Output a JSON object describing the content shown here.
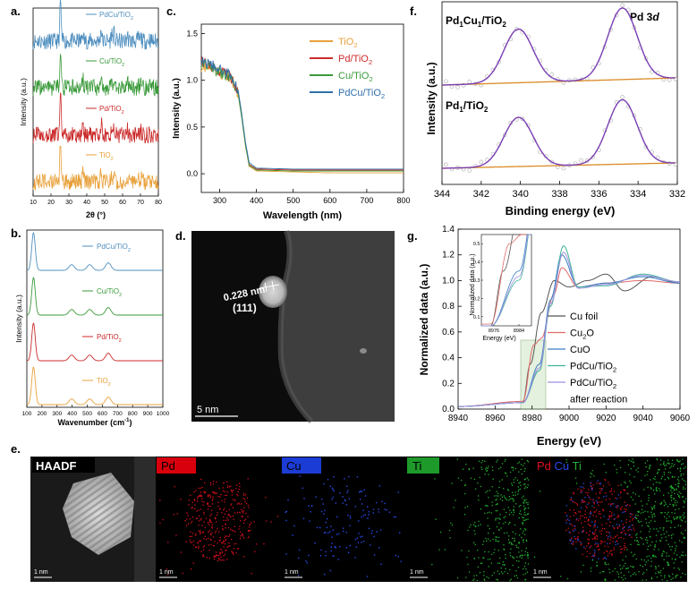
{
  "panels": {
    "a": {
      "letter": "a.",
      "ylabel": "Intensity (a.u.)",
      "xlabel": "2θ (°)",
      "xticks": [
        "10",
        "20",
        "30",
        "40",
        "50",
        "60",
        "70",
        "80"
      ],
      "series": [
        {
          "name": "PdCu/TiO",
          "sub": "2",
          "color": "#4f8fbf"
        },
        {
          "name": "Cu/TiO",
          "sub": "2",
          "color": "#3a9a3a"
        },
        {
          "name": "Pd/TiO",
          "sub": "2",
          "color": "#cc2b2b"
        },
        {
          "name": "TiO",
          "sub": "2",
          "color": "#e8a13a"
        }
      ]
    },
    "b": {
      "letter": "b.",
      "ylabel": "Intensity (a.u.)",
      "xlabel": "Wavenumber (cm",
      "xlabel_sup": "-1",
      "xlabel_tail": ")",
      "xticks": [
        "100",
        "200",
        "300",
        "400",
        "500",
        "600",
        "700",
        "800",
        "900",
        "1000"
      ],
      "series": [
        {
          "name": "PdCu/TiO",
          "sub": "2",
          "color": "#4f8fbf"
        },
        {
          "name": "Cu/TiO",
          "sub": "2",
          "color": "#3a9a3a"
        },
        {
          "name": "Pd/TiO",
          "sub": "2",
          "color": "#cc2b2b"
        },
        {
          "name": "TiO",
          "sub": "2",
          "color": "#e8a13a"
        }
      ]
    },
    "c": {
      "letter": "c.",
      "ylabel": "Intensity (a.u.)",
      "xlabel": "Wavelength (nm)",
      "xticks": [
        "300",
        "400",
        "500",
        "600",
        "700",
        "800"
      ],
      "yticks": [
        "0.0",
        "0.5",
        "1.0",
        "1.5"
      ],
      "series": [
        {
          "name": "TiO",
          "sub": "2",
          "color": "#e8a13a"
        },
        {
          "name": "Pd/TiO",
          "sub": "2",
          "color": "#cc2b2b"
        },
        {
          "name": "Cu/TiO",
          "sub": "2",
          "color": "#3a9a3a"
        },
        {
          "name": "PdCu/TiO",
          "sub": "2",
          "color": "#2f6fa8"
        }
      ]
    },
    "d": {
      "letter": "d.",
      "dspacing": "0.228 nm",
      "plane": "(111)",
      "scalebar": "5 nm"
    },
    "e": {
      "letter": "e.",
      "tiles": [
        {
          "label": "HAADF",
          "scalebar": "1 nm"
        },
        {
          "label": "Pd",
          "scalebar": "1 nm"
        },
        {
          "label": "Cu",
          "scalebar": "1 nm"
        },
        {
          "label": "Ti",
          "scalebar": "1 nm"
        },
        {
          "label_pd": "Pd",
          "label_cu": "Cu",
          "label_ti": "Ti",
          "scalebar": "1 nm"
        }
      ]
    },
    "f": {
      "letter": "f.",
      "ylabel": "Intensity (a.u.)",
      "xlabel": "Binding energy (eV)",
      "xticks": [
        "344",
        "342",
        "340",
        "338",
        "336",
        "334",
        "332"
      ],
      "label_top": "Pd",
      "label_top_sub1": "1",
      "label_top_mid": "Cu",
      "label_top_sub2": "1",
      "label_top_tail": "/TiO",
      "label_top_sub3": "2",
      "label_bottom": "Pd",
      "label_bottom_sub1": "1",
      "label_bottom_tail": "/TiO",
      "label_bottom_sub2": "2",
      "core_level": "Pd 3",
      "core_level_d": "d"
    },
    "g": {
      "letter": "g.",
      "ylabel": "Normalized data (a.u.)",
      "xlabel": "Energy (eV)",
      "xticks": [
        "8940",
        "8960",
        "8980",
        "9000",
        "9020",
        "9040",
        "9060"
      ],
      "yticks": [
        "0.0",
        "0.2",
        "0.4",
        "0.6",
        "0.8",
        "1.0",
        "1.2",
        "1.4"
      ],
      "inset_ylabel": "Normalized data (a.u.)",
      "inset_xlabel": "Energy (eV)",
      "inset_xticks": [
        "8976",
        "8984"
      ],
      "inset_yticks": [
        "0.1",
        "0.2",
        "0.3",
        "0.4",
        "0.5"
      ],
      "legend": [
        {
          "name": "Cu foil",
          "color": "#555555"
        },
        {
          "name": "Cu",
          "sub": "2",
          "tail": "O",
          "color": "#e06a6a"
        },
        {
          "name": "CuO",
          "color": "#3b7fc4"
        },
        {
          "name": "PdCu/TiO",
          "sub": "2",
          "color": "#3fb39a"
        },
        {
          "name": "PdCu/TiO",
          "sub": "2",
          "color": "#9f8fe0"
        },
        {
          "name": "after reaction",
          "color": "#000000"
        }
      ]
    }
  },
  "chart_data": [
    {
      "panel": "a",
      "type": "line",
      "xlabel": "2θ (°)",
      "ylabel": "Intensity (a.u.)",
      "xlim": [
        10,
        80
      ],
      "peaks_2theta": [
        25.3,
        37.8,
        48.0,
        53.9,
        55.1,
        62.7,
        68.8,
        70.3,
        75.0
      ],
      "peak_rel_heights": [
        1.0,
        0.2,
        0.3,
        0.2,
        0.2,
        0.15,
        0.08,
        0.08,
        0.06
      ],
      "series": [
        "PdCu/TiO2",
        "Cu/TiO2",
        "Pd/TiO2",
        "TiO2"
      ]
    },
    {
      "panel": "b",
      "type": "line",
      "xlabel": "Wavenumber (cm-1)",
      "ylabel": "Intensity (a.u.)",
      "xlim": [
        100,
        1000
      ],
      "peaks_cm1": [
        144,
        397,
        516,
        639
      ],
      "peak_rel_heights": [
        1.0,
        0.15,
        0.15,
        0.2
      ],
      "series": [
        "PdCu/TiO2",
        "Cu/TiO2",
        "Pd/TiO2",
        "TiO2"
      ]
    },
    {
      "panel": "c",
      "type": "line",
      "xlabel": "Wavelength (nm)",
      "ylabel": "Intensity (a.u.)",
      "xlim": [
        250,
        800
      ],
      "ylim": [
        -0.2,
        1.6
      ],
      "series": [
        {
          "name": "TiO2",
          "x": [
            250,
            300,
            330,
            350,
            360,
            370,
            380,
            400,
            500,
            600,
            700,
            800
          ],
          "y": [
            1.15,
            1.08,
            1.02,
            0.85,
            0.6,
            0.3,
            0.08,
            0.03,
            0.02,
            0.01,
            0.01,
            0.01
          ]
        },
        {
          "name": "Pd/TiO2",
          "x": [
            250,
            300,
            330,
            350,
            360,
            370,
            380,
            400,
            500,
            600,
            700,
            800
          ],
          "y": [
            1.2,
            1.1,
            1.04,
            0.88,
            0.62,
            0.32,
            0.1,
            0.05,
            0.04,
            0.04,
            0.04,
            0.04
          ]
        },
        {
          "name": "Cu/TiO2",
          "x": [
            250,
            300,
            330,
            350,
            360,
            370,
            380,
            400,
            500,
            600,
            700,
            800
          ],
          "y": [
            1.18,
            1.09,
            1.03,
            0.86,
            0.6,
            0.31,
            0.09,
            0.04,
            0.03,
            0.03,
            0.03,
            0.03
          ]
        },
        {
          "name": "PdCu/TiO2",
          "x": [
            250,
            300,
            330,
            350,
            360,
            370,
            380,
            400,
            500,
            600,
            700,
            800
          ],
          "y": [
            1.22,
            1.12,
            1.05,
            0.9,
            0.64,
            0.34,
            0.12,
            0.06,
            0.05,
            0.05,
            0.05,
            0.05
          ]
        }
      ]
    },
    {
      "panel": "f",
      "type": "line",
      "xlabel": "Binding energy (eV)",
      "ylabel": "Intensity (a.u.)",
      "xlim": [
        344,
        332
      ],
      "peaks_eV": [
        340.1,
        334.8
      ],
      "series": [
        "Pd1Cu1/TiO2",
        "Pd1/TiO2"
      ]
    },
    {
      "panel": "g",
      "type": "line",
      "xlabel": "Energy (eV)",
      "ylabel": "Normalized data (a.u.)",
      "xlim": [
        8940,
        9060
      ],
      "ylim": [
        0,
        1.4
      ],
      "series": [
        {
          "name": "Cu foil",
          "x": [
            8940,
            8975,
            8979,
            8985,
            8992,
            9000,
            9010,
            9020,
            9030,
            9045,
            9060
          ],
          "y": [
            0.02,
            0.05,
            0.35,
            0.75,
            1.0,
            0.95,
            1.0,
            1.05,
            0.92,
            1.03,
            0.98
          ]
        },
        {
          "name": "Cu2O",
          "x": [
            8940,
            8975,
            8981,
            8985,
            8992,
            8996,
            9005,
            9020,
            9040,
            9060
          ],
          "y": [
            0.02,
            0.06,
            0.5,
            0.55,
            0.9,
            1.1,
            0.95,
            0.98,
            1.0,
            0.98
          ]
        },
        {
          "name": "CuO",
          "x": [
            8940,
            8975,
            8984,
            8990,
            8996,
            9005,
            9020,
            9040,
            9060
          ],
          "y": [
            0.02,
            0.05,
            0.35,
            0.85,
            1.2,
            0.95,
            0.98,
            1.03,
            0.98
          ]
        },
        {
          "name": "PdCu/TiO2",
          "x": [
            8940,
            8975,
            8984,
            8990,
            8997,
            9005,
            9020,
            9040,
            9060
          ],
          "y": [
            0.02,
            0.05,
            0.3,
            0.8,
            1.27,
            0.95,
            0.96,
            1.05,
            0.99
          ]
        },
        {
          "name": "PdCu/TiO2 after reaction",
          "x": [
            8940,
            8975,
            8984,
            8990,
            8997,
            9005,
            9020,
            9040,
            9060
          ],
          "y": [
            0.02,
            0.05,
            0.32,
            0.82,
            1.22,
            0.94,
            0.97,
            1.04,
            0.99
          ]
        }
      ]
    }
  ]
}
